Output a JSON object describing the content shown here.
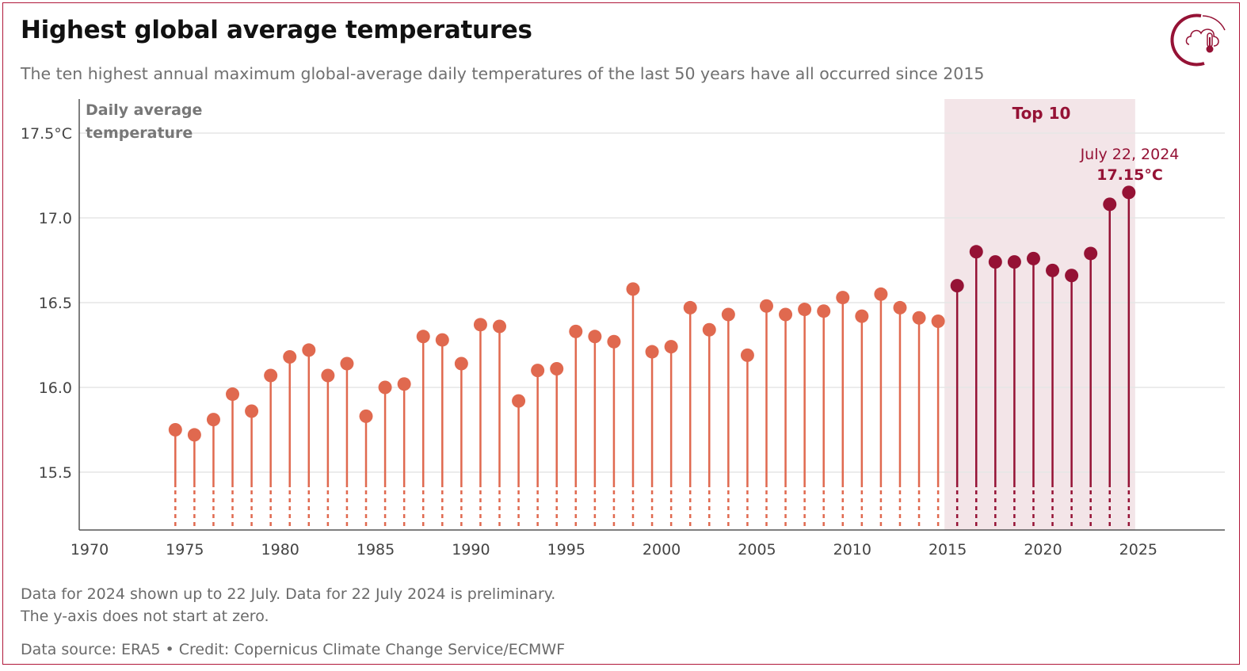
{
  "title": "Highest global average temperatures",
  "subtitle": "The ten highest annual maximum global-average daily temperatures of the last 50 years have all occurred since 2015",
  "notes": [
    "Data for 2024 shown up to 22 July. Data for 22 July 2024 is preliminary.",
    "The y-axis does not start at zero."
  ],
  "source": "Data source: ERA5 • Credit: Copernicus Climate Change Service/ECMWF",
  "logo_icon": "cloud-thermometer-icon",
  "colors": {
    "normal": "#e0694f",
    "top10": "#951235",
    "band": "#f3e5e8",
    "grid": "#e6e6e6"
  },
  "chart_data": {
    "type": "lollipop",
    "title": "Highest global average temperatures",
    "ylabel_lines": [
      "Daily average",
      "temperature"
    ],
    "ylim": [
      15.15,
      17.65
    ],
    "xlim": [
      1970,
      2030
    ],
    "y_ticks": [
      15.5,
      16.0,
      16.5,
      17.0,
      17.5
    ],
    "y_tick_labels": [
      "15.5",
      "16.0",
      "16.5",
      "17.0",
      "17.5°C"
    ],
    "x_ticks": [
      "1970",
      "1975",
      "1980",
      "1985",
      "1990",
      "1995",
      "2000",
      "2005",
      "2010",
      "2015",
      "2020",
      "2025"
    ],
    "grid": true,
    "highlight_label": "Top 10",
    "highlight_range": [
      2015,
      2024
    ],
    "annotation": {
      "date": "July 22, 2024",
      "value": "17.15°C"
    },
    "years": [
      1974,
      1975,
      1976,
      1977,
      1978,
      1979,
      1980,
      1981,
      1982,
      1983,
      1984,
      1985,
      1986,
      1987,
      1988,
      1989,
      1990,
      1991,
      1992,
      1993,
      1994,
      1995,
      1996,
      1997,
      1998,
      1999,
      2000,
      2001,
      2002,
      2003,
      2004,
      2005,
      2006,
      2007,
      2008,
      2009,
      2010,
      2011,
      2012,
      2013,
      2014,
      2015,
      2016,
      2017,
      2018,
      2019,
      2020,
      2021,
      2022,
      2023,
      2024
    ],
    "values": [
      15.75,
      15.72,
      15.81,
      15.96,
      15.86,
      16.07,
      16.18,
      16.22,
      16.07,
      16.14,
      15.83,
      16.0,
      16.02,
      16.3,
      16.28,
      16.14,
      16.37,
      16.36,
      15.92,
      16.1,
      16.11,
      16.33,
      16.3,
      16.27,
      16.58,
      16.21,
      16.24,
      16.47,
      16.34,
      16.43,
      16.19,
      16.48,
      16.43,
      16.46,
      16.45,
      16.53,
      16.42,
      16.55,
      16.47,
      16.41,
      16.39,
      16.6,
      16.8,
      16.74,
      16.74,
      16.76,
      16.69,
      16.66,
      16.79,
      17.08,
      17.15
    ],
    "unit": "°C"
  }
}
